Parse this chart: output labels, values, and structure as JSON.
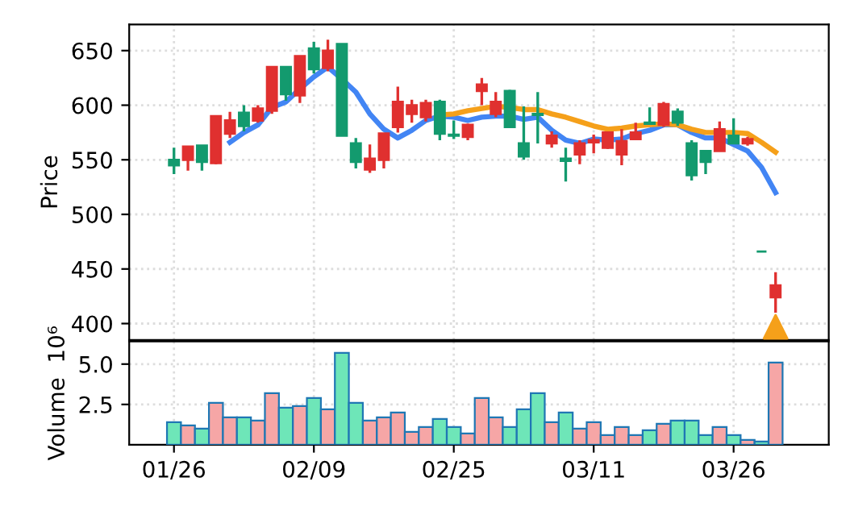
{
  "chart_data": [
    {
      "type": "candlestick",
      "ylabel": "Price",
      "categories": [
        null,
        null,
        null,
        null,
        null,
        null,
        null,
        null,
        null,
        null,
        null,
        null,
        null,
        null,
        null,
        null,
        null,
        null,
        null,
        null,
        null,
        null,
        null,
        null,
        null,
        null,
        null,
        null,
        null,
        null,
        null,
        null,
        null,
        null,
        null,
        null,
        null,
        null,
        null,
        null,
        null,
        null,
        null,
        null
      ],
      "ohlc": [
        [
          550,
          561,
          537,
          545
        ],
        [
          550,
          562,
          540,
          562
        ],
        [
          563,
          563,
          540,
          548
        ],
        [
          547,
          590,
          546,
          590
        ],
        [
          574,
          594,
          570,
          586
        ],
        [
          593,
          600,
          576,
          581
        ],
        [
          586,
          600,
          584,
          597
        ],
        [
          595,
          635,
          592,
          635
        ],
        [
          635,
          635,
          604,
          610
        ],
        [
          609,
          645,
          602,
          645
        ],
        [
          652,
          658,
          629,
          633
        ],
        [
          634,
          660,
          631,
          650
        ],
        [
          656,
          656,
          572,
          572
        ],
        [
          565,
          570,
          542,
          548
        ],
        [
          541,
          564,
          538,
          551
        ],
        [
          550,
          574,
          542,
          574
        ],
        [
          580,
          617,
          575,
          603
        ],
        [
          592,
          605,
          584,
          600
        ],
        [
          589,
          605,
          585,
          602
        ],
        [
          603,
          605,
          568,
          574
        ],
        [
          573,
          586,
          569,
          572
        ],
        [
          571,
          583,
          568,
          582
        ],
        [
          613,
          625,
          600,
          619
        ],
        [
          592,
          612,
          589,
          603
        ],
        [
          613,
          614,
          580,
          580
        ],
        [
          565,
          599,
          550,
          553
        ],
        [
          592,
          612,
          565,
          591
        ],
        [
          565,
          576,
          561,
          572
        ],
        [
          551,
          561,
          530,
          549
        ],
        [
          555,
          568,
          546,
          565
        ],
        [
          566,
          573,
          556,
          568
        ],
        [
          561,
          576,
          560,
          575
        ],
        [
          555,
          578,
          545,
          567
        ],
        [
          569,
          584,
          568,
          575
        ],
        [
          584,
          598,
          583,
          583
        ],
        [
          582,
          603,
          580,
          601
        ],
        [
          594,
          597,
          581,
          584
        ],
        [
          565,
          568,
          531,
          536
        ],
        [
          558,
          558,
          537,
          548
        ],
        [
          558,
          585,
          558,
          578
        ],
        [
          572,
          588,
          565,
          565
        ],
        [
          565,
          571,
          563,
          569
        ],
        [
          466,
          466,
          466,
          466
        ],
        [
          424,
          447,
          410,
          435
        ]
      ],
      "colors": [
        "#139a6e",
        "#e0302f",
        "#139a6e",
        "#e0302f",
        "#e0302f",
        "#139a6e",
        "#e0302f",
        "#e0302f",
        "#139a6e",
        "#e0302f",
        "#139a6e",
        "#e0302f",
        "#139a6e",
        "#139a6e",
        "#e0302f",
        "#e0302f",
        "#e0302f",
        "#e0302f",
        "#e0302f",
        "#139a6e",
        "#139a6e",
        "#e0302f",
        "#e0302f",
        "#e0302f",
        "#139a6e",
        "#139a6e",
        "#139a6e",
        "#e0302f",
        "#139a6e",
        "#e0302f",
        "#e0302f",
        "#e0302f",
        "#e0302f",
        "#e0302f",
        "#139a6e",
        "#e0302f",
        "#139a6e",
        "#139a6e",
        "#139a6e",
        "#e0302f",
        "#139a6e",
        "#e0302f",
        "#139a6e",
        "#e0302f"
      ],
      "series": [
        {
          "type": "line",
          "color": "#4285f4",
          "values": [
            null,
            null,
            null,
            null,
            566,
            575,
            582,
            598,
            603,
            615,
            626,
            635,
            624,
            612,
            592,
            578,
            570,
            577,
            586,
            590,
            589,
            586,
            589,
            590,
            590,
            587,
            589,
            577,
            568,
            565,
            569,
            568,
            569,
            574,
            577,
            582,
            582,
            575,
            570,
            570,
            564,
            558,
            543,
            520
          ]
        },
        {
          "type": "line",
          "color": "#f5a01a",
          "values": [
            null,
            null,
            null,
            null,
            null,
            null,
            null,
            null,
            null,
            null,
            null,
            null,
            null,
            null,
            null,
            null,
            null,
            null,
            null,
            591,
            592,
            595,
            597,
            599,
            598,
            596,
            596,
            592,
            589,
            585,
            581,
            578,
            579,
            581,
            582,
            583,
            582,
            578,
            575,
            575,
            575,
            574,
            566,
            557
          ]
        },
        {
          "type": "scatter",
          "color": "#f5a01a",
          "marker": "triangle",
          "values": [
            null,
            null,
            null,
            null,
            null,
            null,
            null,
            null,
            null,
            null,
            null,
            null,
            null,
            null,
            null,
            null,
            null,
            null,
            null,
            null,
            null,
            null,
            null,
            null,
            null,
            null,
            null,
            null,
            null,
            null,
            null,
            null,
            null,
            null,
            null,
            null,
            null,
            null,
            null,
            null,
            null,
            null,
            null,
            397
          ]
        }
      ],
      "ylim": [
        385,
        674
      ],
      "yticks": [
        400,
        450,
        500,
        550,
        600,
        650
      ],
      "grid": true
    },
    {
      "type": "bar",
      "ylabel": "Volume  10⁶",
      "categories": [
        "01/26",
        null,
        null,
        null,
        null,
        null,
        null,
        null,
        null,
        null,
        "02/09",
        null,
        null,
        null,
        null,
        null,
        null,
        null,
        null,
        null,
        "02/25",
        null,
        null,
        null,
        null,
        null,
        null,
        null,
        null,
        null,
        "03/11",
        null,
        null,
        null,
        null,
        null,
        null,
        null,
        null,
        null,
        "03/26",
        null,
        null,
        null
      ],
      "values": [
        1.4,
        1.2,
        1.0,
        2.6,
        1.7,
        1.7,
        1.5,
        3.2,
        2.3,
        2.4,
        2.9,
        2.2,
        5.7,
        2.6,
        1.5,
        1.7,
        2.0,
        0.8,
        1.1,
        1.6,
        1.1,
        0.7,
        2.9,
        1.7,
        1.1,
        2.2,
        3.2,
        1.4,
        2.0,
        1.0,
        1.4,
        0.6,
        1.1,
        0.6,
        0.9,
        1.3,
        1.5,
        1.5,
        0.6,
        1.1,
        0.6,
        0.3,
        0.2,
        5.1
      ],
      "colors": [
        "#6ee6b8",
        "#f6a6a6",
        "#6ee6b8",
        "#f6a6a6",
        "#f6a6a6",
        "#6ee6b8",
        "#f6a6a6",
        "#f6a6a6",
        "#6ee6b8",
        "#f6a6a6",
        "#6ee6b8",
        "#f6a6a6",
        "#6ee6b8",
        "#6ee6b8",
        "#f6a6a6",
        "#f6a6a6",
        "#f6a6a6",
        "#f6a6a6",
        "#f6a6a6",
        "#6ee6b8",
        "#6ee6b8",
        "#f6a6a6",
        "#f6a6a6",
        "#f6a6a6",
        "#6ee6b8",
        "#6ee6b8",
        "#6ee6b8",
        "#f6a6a6",
        "#6ee6b8",
        "#f6a6a6",
        "#f6a6a6",
        "#f6a6a6",
        "#f6a6a6",
        "#f6a6a6",
        "#6ee6b8",
        "#f6a6a6",
        "#6ee6b8",
        "#6ee6b8",
        "#6ee6b8",
        "#f6a6a6",
        "#6ee6b8",
        "#f6a6a6",
        "#6ee6b8",
        "#f6a6a6"
      ],
      "ylim": [
        0,
        6.4
      ],
      "yticks": [
        {
          "value": 2.5,
          "label": "2.5"
        },
        {
          "value": 5,
          "label": "5.0"
        }
      ],
      "grid": true
    }
  ]
}
